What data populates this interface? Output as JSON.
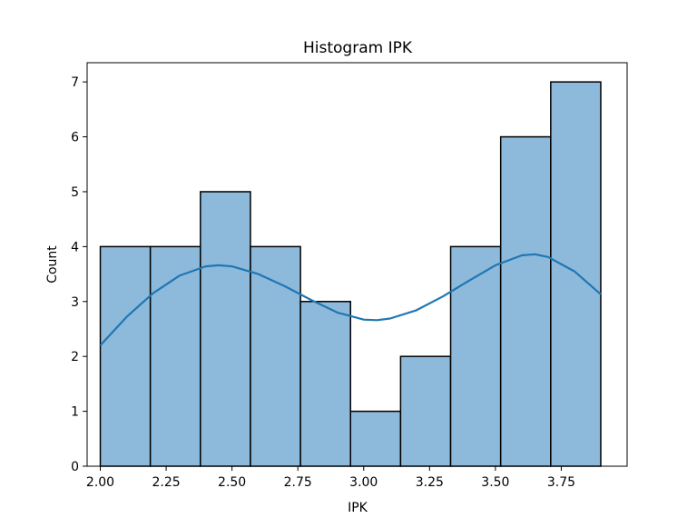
{
  "chart_data": {
    "type": "bar",
    "title": "Histogram IPK",
    "xlabel": "IPK",
    "ylabel": "Count",
    "xlim": [
      1.95,
      4.0
    ],
    "ylim": [
      0,
      7.35
    ],
    "bins": [
      {
        "x0": 2.0,
        "x1": 2.19,
        "count": 4
      },
      {
        "x0": 2.19,
        "x1": 2.38,
        "count": 4
      },
      {
        "x0": 2.38,
        "x1": 2.57,
        "count": 5
      },
      {
        "x0": 2.57,
        "x1": 2.76,
        "count": 4
      },
      {
        "x0": 2.76,
        "x1": 2.95,
        "count": 3
      },
      {
        "x0": 2.95,
        "x1": 3.14,
        "count": 1
      },
      {
        "x0": 3.14,
        "x1": 3.33,
        "count": 2
      },
      {
        "x0": 3.33,
        "x1": 3.52,
        "count": 4
      },
      {
        "x0": 3.52,
        "x1": 3.71,
        "count": 6
      },
      {
        "x0": 3.71,
        "x1": 3.9,
        "count": 7
      }
    ],
    "kde": {
      "x": [
        2.0,
        2.1,
        2.2,
        2.3,
        2.4,
        2.45,
        2.5,
        2.6,
        2.7,
        2.8,
        2.9,
        3.0,
        3.05,
        3.1,
        3.2,
        3.3,
        3.4,
        3.5,
        3.6,
        3.65,
        3.7,
        3.8,
        3.9
      ],
      "y": [
        2.2,
        2.72,
        3.15,
        3.47,
        3.64,
        3.66,
        3.64,
        3.5,
        3.28,
        3.03,
        2.8,
        2.67,
        2.66,
        2.69,
        2.84,
        3.09,
        3.38,
        3.66,
        3.84,
        3.86,
        3.81,
        3.55,
        3.13
      ]
    },
    "xticks": [
      2.0,
      2.25,
      2.5,
      2.75,
      3.0,
      3.25,
      3.5,
      3.75
    ],
    "xtick_labels": [
      "2.00",
      "2.25",
      "2.50",
      "2.75",
      "3.00",
      "3.25",
      "3.50",
      "3.75"
    ],
    "yticks": [
      0,
      1,
      2,
      3,
      4,
      5,
      6,
      7
    ],
    "ytick_labels": [
      "0",
      "1",
      "2",
      "3",
      "4",
      "5",
      "6",
      "7"
    ],
    "grid": false,
    "colors": {
      "bar_fill": "#8db9da",
      "bar_edge": "#000000",
      "kde_line": "#1f77b4"
    }
  }
}
